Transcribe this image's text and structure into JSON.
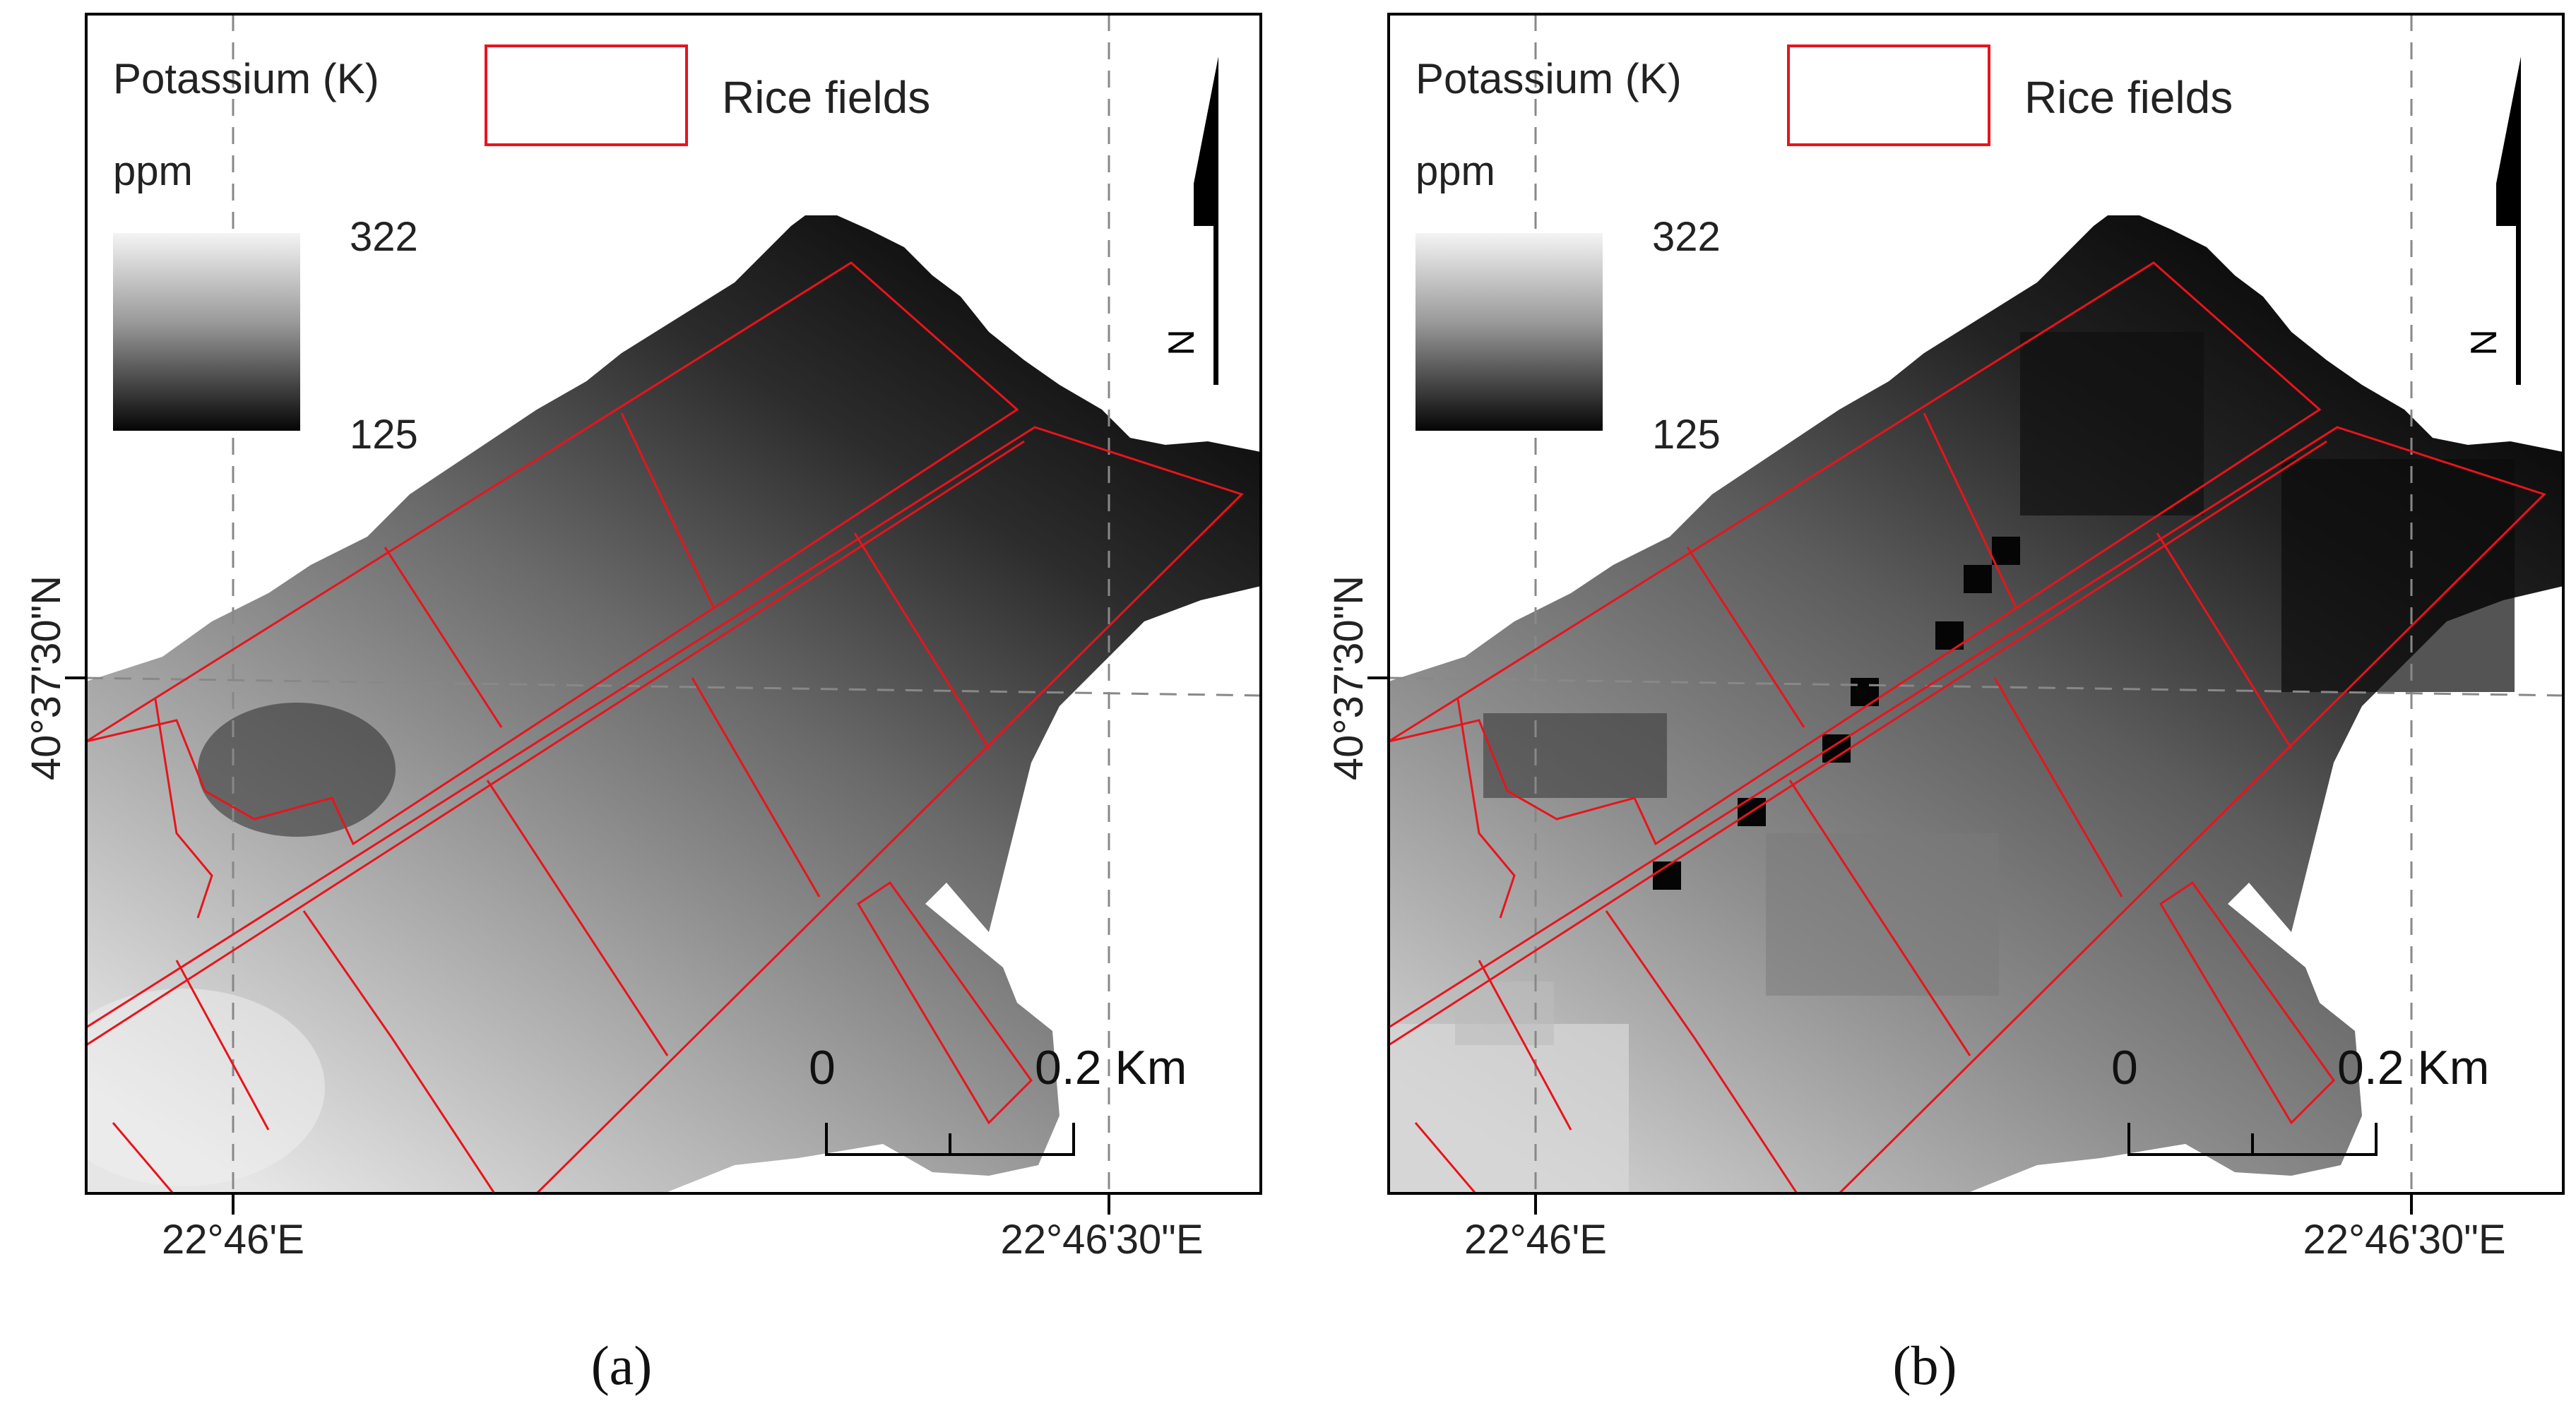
{
  "panels": [
    {
      "id": "a",
      "legend": {
        "title": "Potassium (K)",
        "unit": "ppm",
        "max_label": "322",
        "min_label": "125",
        "polygon_label": "Rice fields",
        "polygon_color": "#e8141c"
      },
      "scale": {
        "start_label": "0",
        "end_label": "0.2 Km"
      },
      "north_label": "N",
      "lat_label": "40°37'30\"N",
      "lon_labels": [
        "22°46'E",
        "22°46'30\"E"
      ],
      "caption": "(a)"
    },
    {
      "id": "b",
      "legend": {
        "title": "Potassium (K)",
        "unit": "ppm",
        "max_label": "322",
        "min_label": "125",
        "polygon_label": "Rice fields",
        "polygon_color": "#e8141c"
      },
      "scale": {
        "start_label": "0",
        "end_label": "0.2 Km"
      },
      "north_label": "N",
      "lat_label": "40°37'30\"N",
      "lon_labels": [
        "22°46'E",
        "22°46'30\"E"
      ],
      "caption": "(b)"
    }
  ]
}
